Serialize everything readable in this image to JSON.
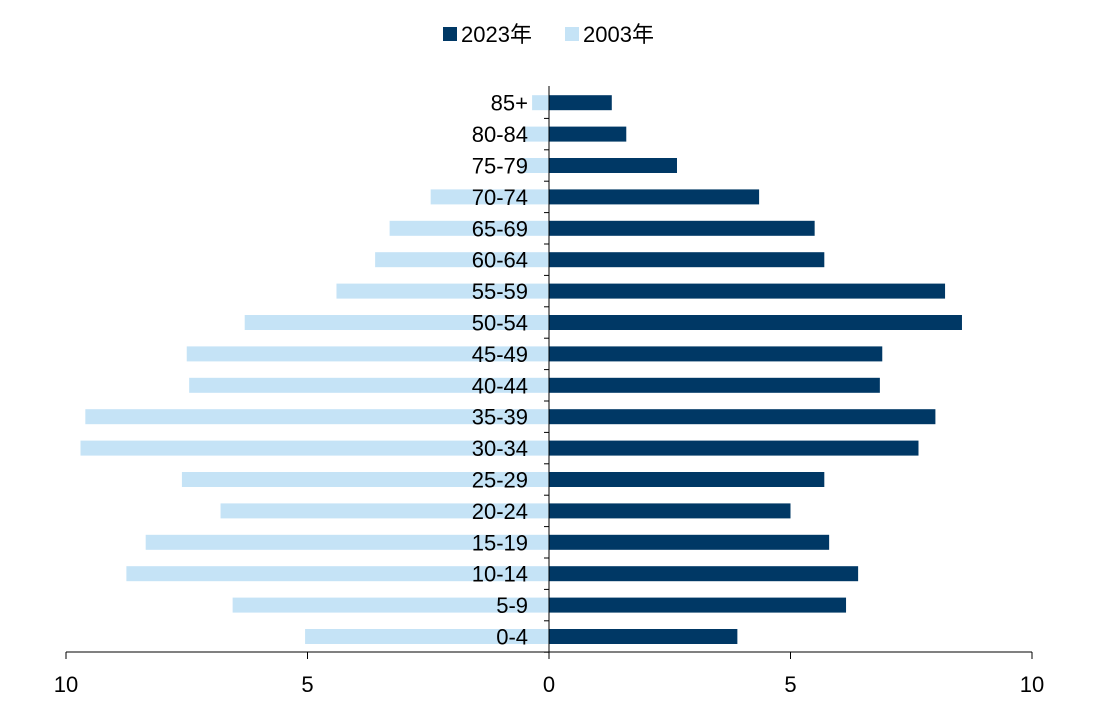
{
  "chart_data": {
    "type": "bar",
    "orientation": "horizontal",
    "layout": "population-pyramid",
    "categories": [
      "0-4",
      "5-9",
      "10-14",
      "15-19",
      "20-24",
      "25-29",
      "30-34",
      "35-39",
      "40-44",
      "45-49",
      "50-54",
      "55-59",
      "60-64",
      "65-69",
      "70-74",
      "75-79",
      "80-84",
      "85+"
    ],
    "series": [
      {
        "name": "2023年",
        "side": "right",
        "color": "#003865",
        "values": [
          3.9,
          6.15,
          6.4,
          5.8,
          5.0,
          5.7,
          7.65,
          8.0,
          6.85,
          6.9,
          8.55,
          8.2,
          5.7,
          5.5,
          4.35,
          2.65,
          1.6,
          1.3
        ]
      },
      {
        "name": "2003年",
        "side": "left",
        "color": "#c5e3f6",
        "values": [
          5.05,
          6.55,
          8.75,
          8.35,
          6.8,
          7.6,
          9.7,
          9.6,
          7.45,
          7.5,
          6.3,
          4.4,
          3.6,
          3.3,
          2.45,
          0.6,
          0.5,
          0.35
        ]
      }
    ],
    "xticks": [
      "10",
      "5",
      "0",
      "5",
      "10"
    ],
    "xlim": [
      -10,
      10
    ],
    "legend_position": "top-center",
    "grid": false,
    "title": "",
    "xlabel": "",
    "ylabel": ""
  }
}
